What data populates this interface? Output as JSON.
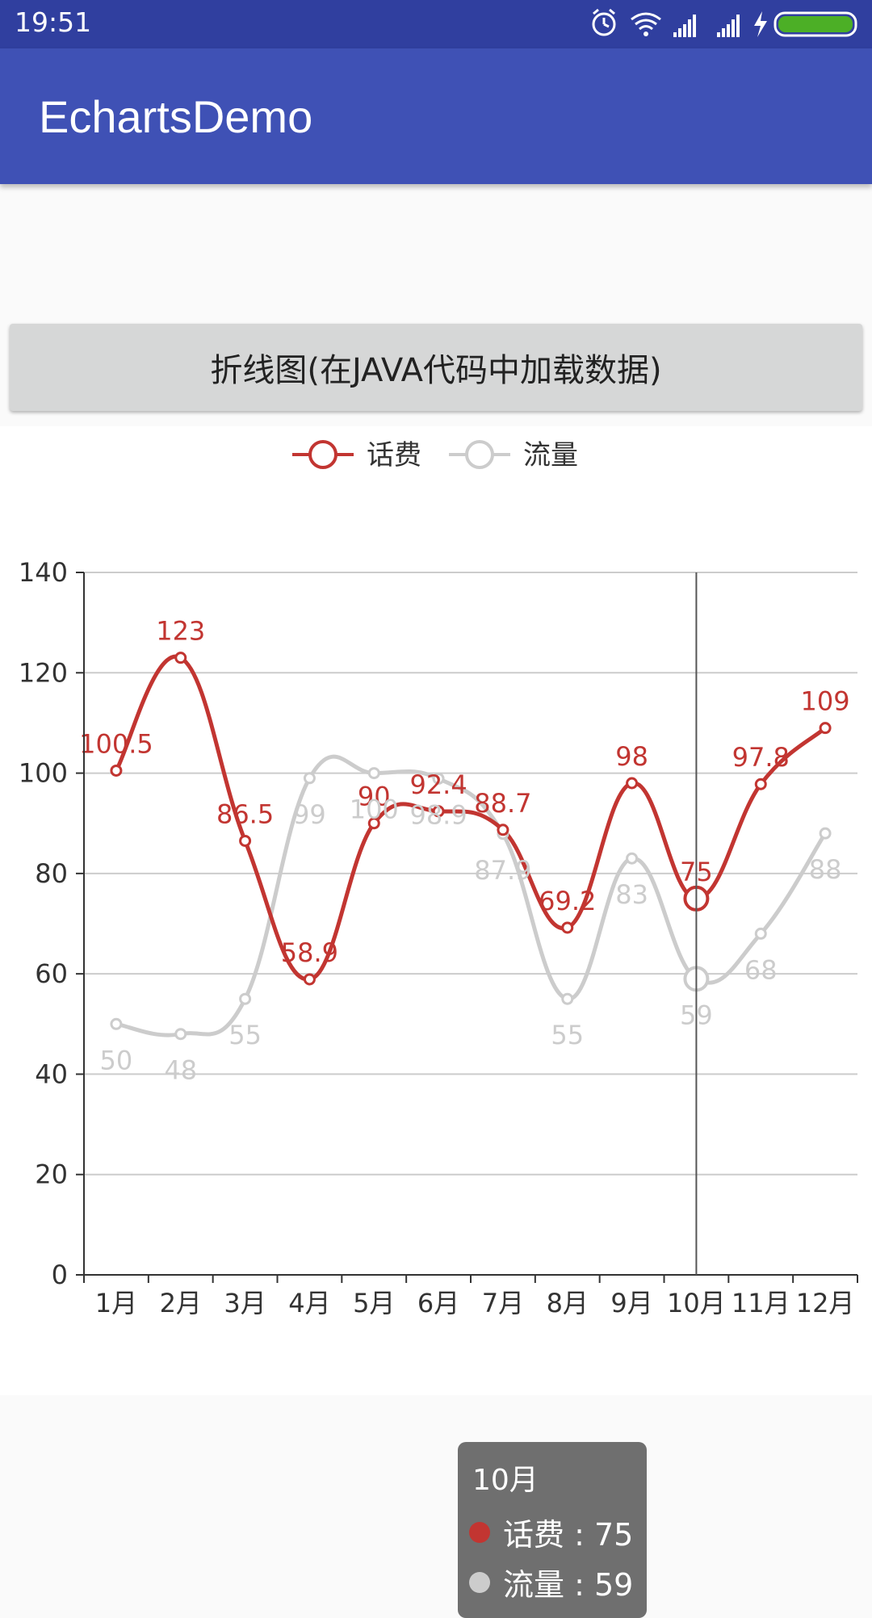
{
  "status_bar": {
    "time": "19:51",
    "icons": [
      "alarm-icon",
      "wifi-icon",
      "signal-icon",
      "signal-icon",
      "charging-icon",
      "battery-icon"
    ],
    "background": "#303f9f"
  },
  "app_bar": {
    "title": "EchartsDemo",
    "background": "#3f51b5"
  },
  "load_button": {
    "label": "折线图(在JAVA代码中加载数据)"
  },
  "chart_data": {
    "type": "line",
    "smooth": true,
    "categories": [
      "1月",
      "2月",
      "3月",
      "4月",
      "5月",
      "6月",
      "7月",
      "8月",
      "9月",
      "10月",
      "11月",
      "12月"
    ],
    "series": [
      {
        "name": "话费",
        "color": "#c23531",
        "values": [
          100.5,
          123,
          86.5,
          58.9,
          90,
          92.4,
          88.7,
          69.2,
          98,
          75,
          97.8,
          109
        ],
        "labels": [
          "100.5",
          "123",
          "86.5",
          "58.9",
          "90",
          "92.4",
          "88.7",
          "69.2",
          "98",
          "75",
          "97.8",
          "109"
        ]
      },
      {
        "name": "流量",
        "color": "#cccccc",
        "values": [
          50,
          48,
          55,
          99,
          100,
          98.9,
          87.9,
          55,
          83,
          59,
          68,
          88
        ],
        "labels": [
          "50",
          "48",
          "55",
          "99",
          "100",
          "98.9",
          "87.9",
          "55",
          "83",
          "59",
          "68",
          "88"
        ]
      }
    ],
    "ylim": [
      0,
      140
    ],
    "y_ticks": [
      0,
      20,
      40,
      60,
      80,
      100,
      120,
      140
    ],
    "grid": true,
    "legend": "top-center",
    "highlight_index": 9
  },
  "tooltip": {
    "title": "10月",
    "rows": [
      {
        "text": "话费 : 75",
        "color": "#c23531"
      },
      {
        "text": "流量 : 59",
        "color": "#cccccc"
      }
    ]
  }
}
